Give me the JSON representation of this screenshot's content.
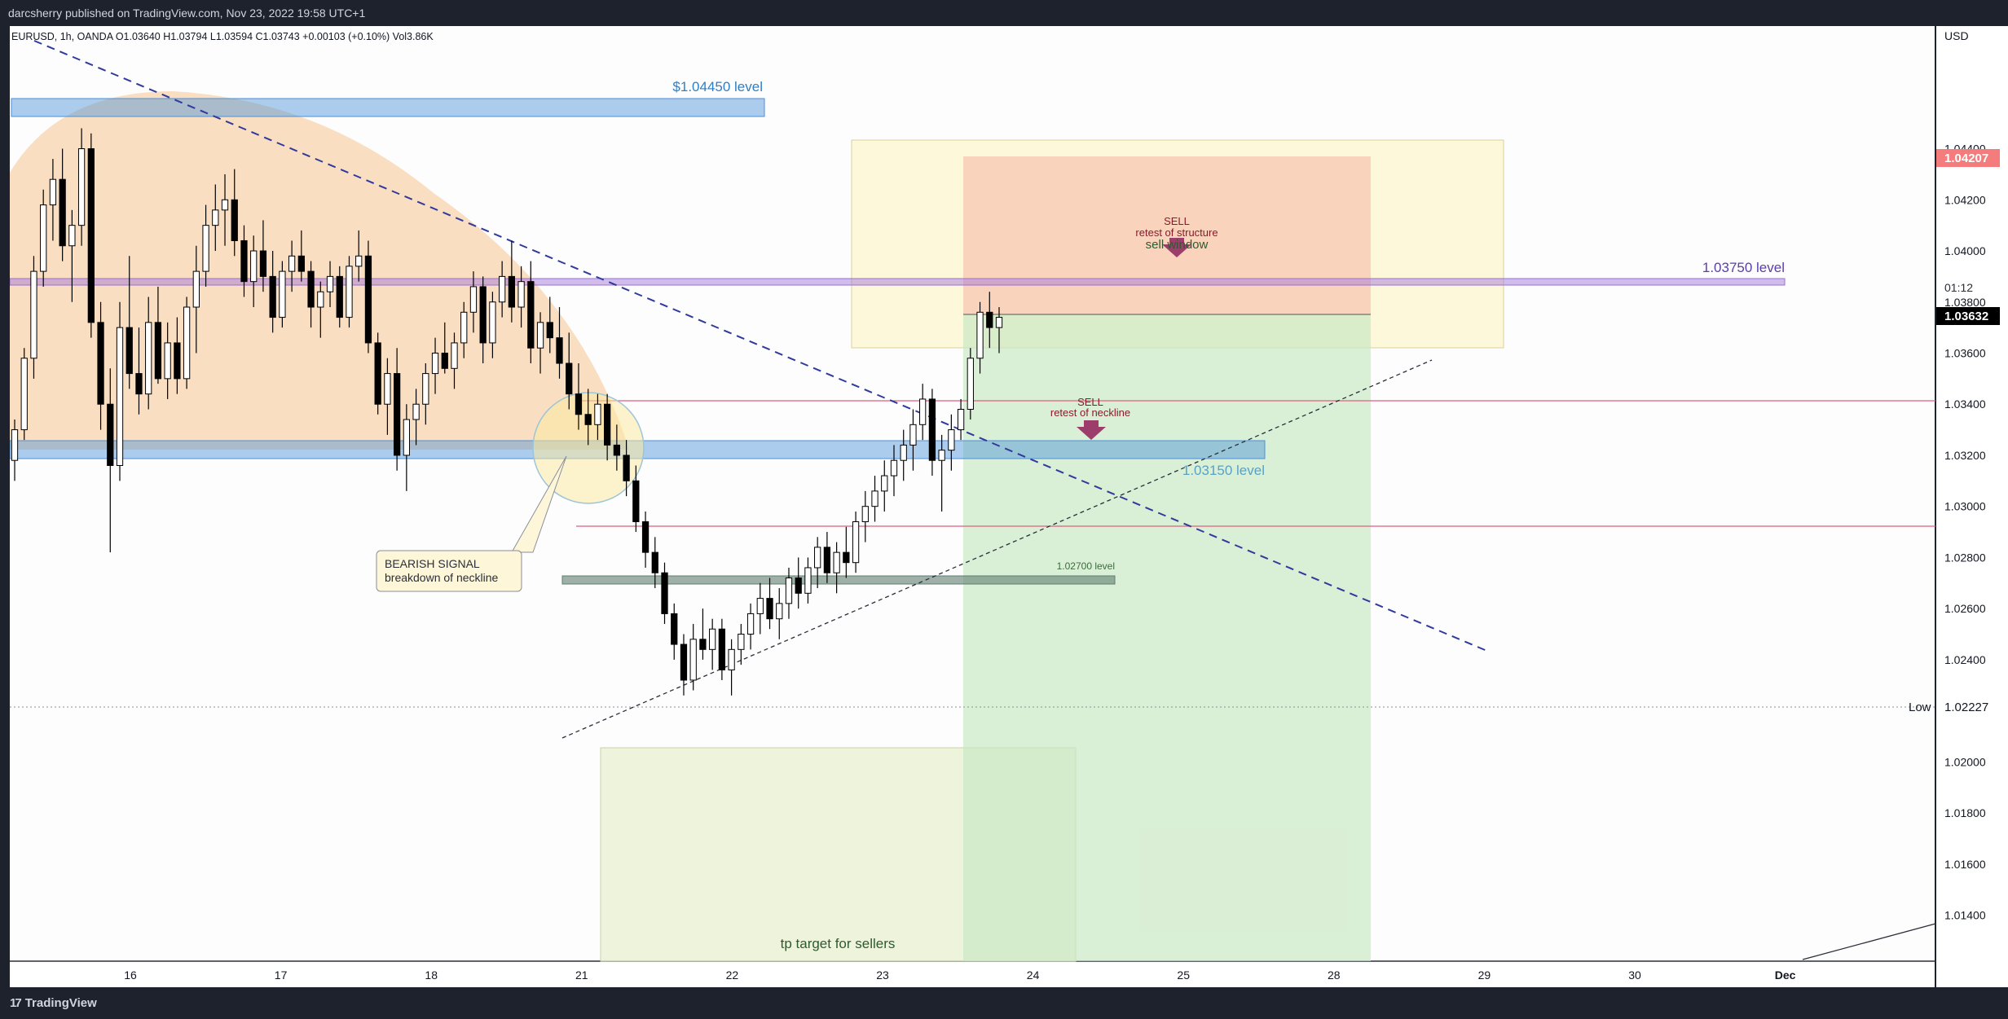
{
  "header": {
    "published": "darcsherry published on TradingView.com, Nov 23, 2022 19:58 UTC+1"
  },
  "footer": {
    "brand": "TradingView",
    "brand_mark": "17"
  },
  "chart_data": {
    "type": "candlestick",
    "symbol_line": "EURUSD, 1h, OANDA  O1.03640  H1.03794  L1.03594  C1.03743  +0.00103 (+0.10%)  Vol3.86K",
    "currency": "USD",
    "ylim": [
      1.0122,
      1.0488
    ],
    "y_ticks": [
      "1.04400",
      "1.04200",
      "1.04000",
      "1.03800",
      "1.03600",
      "1.03400",
      "1.03200",
      "1.03000",
      "1.02800",
      "1.02600",
      "1.02400",
      "1.02200",
      "1.02000",
      "1.01800",
      "1.01600",
      "1.01400"
    ],
    "x_ticks": [
      "16",
      "17",
      "18",
      "21",
      "22",
      "23",
      "24",
      "25",
      "28",
      "29",
      "30",
      "Dec"
    ],
    "price_labels": {
      "current": "1.03632",
      "countdown": "01:12",
      "alert": "1.04207",
      "low_label": "Low",
      "low_value": "1.02227"
    },
    "levels": {
      "l104450": "$1.04450 level",
      "l103750": "1.03750 level",
      "l103150": "1.03150 level",
      "l102700": "1.02700 level"
    },
    "annotations": {
      "sell1": "SELL",
      "sell1b": "retest of structure",
      "sell_window": "sell window",
      "sell2": "SELL",
      "sell2b": "retest of neckline",
      "bearish1": "BEARISH SIGNAL",
      "bearish2": "breakdown of neckline",
      "tp": "tp target for sellers"
    },
    "colors": {
      "up": "#ffffff",
      "down": "#000000",
      "level_blue": "#4a90d9",
      "level_purple": "#9c6fd6",
      "dome": "#f3b77a",
      "tp_box": "#e8f0d0",
      "sell_window": "#fdf6cf",
      "sell_red": "#f8c3b0",
      "sell_green": "#c9e8c4"
    },
    "candles": [
      [
        1.0318,
        1.0334,
        1.031,
        1.033
      ],
      [
        1.033,
        1.0362,
        1.0326,
        1.0358
      ],
      [
        1.0358,
        1.0398,
        1.035,
        1.0392
      ],
      [
        1.0392,
        1.0424,
        1.0386,
        1.0418
      ],
      [
        1.0418,
        1.0436,
        1.0404,
        1.0428
      ],
      [
        1.0428,
        1.044,
        1.0396,
        1.0402
      ],
      [
        1.0402,
        1.0416,
        1.038,
        1.041
      ],
      [
        1.041,
        1.0448,
        1.0402,
        1.044
      ],
      [
        1.044,
        1.0446,
        1.0366,
        1.0372
      ],
      [
        1.0372,
        1.038,
        1.033,
        1.034
      ],
      [
        1.034,
        1.0354,
        1.0282,
        1.0316
      ],
      [
        1.0316,
        1.038,
        1.031,
        1.037
      ],
      [
        1.037,
        1.0398,
        1.0346,
        1.0352
      ],
      [
        1.0352,
        1.037,
        1.0336,
        1.0344
      ],
      [
        1.0344,
        1.0382,
        1.0338,
        1.0372
      ],
      [
        1.0372,
        1.0386,
        1.0348,
        1.035
      ],
      [
        1.035,
        1.0372,
        1.0342,
        1.0364
      ],
      [
        1.0364,
        1.0374,
        1.0344,
        1.035
      ],
      [
        1.035,
        1.0382,
        1.0346,
        1.0378
      ],
      [
        1.0378,
        1.0402,
        1.036,
        1.0392
      ],
      [
        1.0392,
        1.0418,
        1.0386,
        1.041
      ],
      [
        1.041,
        1.0426,
        1.04,
        1.0416
      ],
      [
        1.0416,
        1.043,
        1.0402,
        1.042
      ],
      [
        1.042,
        1.0432,
        1.0398,
        1.0404
      ],
      [
        1.0404,
        1.041,
        1.0382,
        1.0388
      ],
      [
        1.0388,
        1.0406,
        1.0378,
        1.04
      ],
      [
        1.04,
        1.0412,
        1.0384,
        1.039
      ],
      [
        1.039,
        1.04,
        1.0368,
        1.0374
      ],
      [
        1.0374,
        1.0396,
        1.037,
        1.0392
      ],
      [
        1.0392,
        1.0404,
        1.0384,
        1.0398
      ],
      [
        1.0398,
        1.0408,
        1.0388,
        1.0392
      ],
      [
        1.0392,
        1.0396,
        1.037,
        1.0378
      ],
      [
        1.0378,
        1.0388,
        1.0366,
        1.0384
      ],
      [
        1.0384,
        1.0396,
        1.0378,
        1.039
      ],
      [
        1.039,
        1.0394,
        1.037,
        1.0374
      ],
      [
        1.0374,
        1.0398,
        1.037,
        1.0394
      ],
      [
        1.0394,
        1.0408,
        1.0388,
        1.0398
      ],
      [
        1.0398,
        1.0404,
        1.036,
        1.0364
      ],
      [
        1.0364,
        1.0368,
        1.0336,
        1.034
      ],
      [
        1.034,
        1.0358,
        1.0328,
        1.0352
      ],
      [
        1.0352,
        1.0362,
        1.0314,
        1.032
      ],
      [
        1.032,
        1.034,
        1.0306,
        1.0334
      ],
      [
        1.0334,
        1.0346,
        1.0324,
        1.034
      ],
      [
        1.034,
        1.0356,
        1.0332,
        1.0352
      ],
      [
        1.0352,
        1.0366,
        1.0344,
        1.036
      ],
      [
        1.036,
        1.0372,
        1.0352,
        1.0354
      ],
      [
        1.0354,
        1.0368,
        1.0346,
        1.0364
      ],
      [
        1.0364,
        1.038,
        1.0358,
        1.0376
      ],
      [
        1.0376,
        1.0392,
        1.0368,
        1.0386
      ],
      [
        1.0386,
        1.039,
        1.0356,
        1.0364
      ],
      [
        1.0364,
        1.0384,
        1.0358,
        1.038
      ],
      [
        1.038,
        1.0396,
        1.0374,
        1.039
      ],
      [
        1.039,
        1.0404,
        1.0372,
        1.0378
      ],
      [
        1.0378,
        1.0394,
        1.037,
        1.0388
      ],
      [
        1.0388,
        1.0396,
        1.0356,
        1.0362
      ],
      [
        1.0362,
        1.0376,
        1.0352,
        1.0372
      ],
      [
        1.0372,
        1.0382,
        1.036,
        1.0366
      ],
      [
        1.0366,
        1.0378,
        1.035,
        1.0356
      ],
      [
        1.0356,
        1.0368,
        1.0338,
        1.0344
      ],
      [
        1.0344,
        1.0356,
        1.033,
        1.0336
      ],
      [
        1.0336,
        1.0346,
        1.0324,
        1.0332
      ],
      [
        1.0332,
        1.0344,
        1.0326,
        1.034
      ],
      [
        1.034,
        1.0344,
        1.0318,
        1.0324
      ],
      [
        1.0324,
        1.0332,
        1.0314,
        1.032
      ],
      [
        1.032,
        1.0326,
        1.0304,
        1.031
      ],
      [
        1.031,
        1.0316,
        1.029,
        1.0294
      ],
      [
        1.0294,
        1.0298,
        1.0276,
        1.0282
      ],
      [
        1.0282,
        1.0288,
        1.0268,
        1.0274
      ],
      [
        1.0274,
        1.0278,
        1.0254,
        1.0258
      ],
      [
        1.0258,
        1.0262,
        1.024,
        1.0246
      ],
      [
        1.0246,
        1.025,
        1.0226,
        1.0232
      ],
      [
        1.0232,
        1.0254,
        1.0228,
        1.0248
      ],
      [
        1.0248,
        1.026,
        1.024,
        1.0244
      ],
      [
        1.0244,
        1.0256,
        1.0236,
        1.0252
      ],
      [
        1.0252,
        1.0256,
        1.0232,
        1.0236
      ],
      [
        1.0236,
        1.0248,
        1.0226,
        1.0244
      ],
      [
        1.0244,
        1.0254,
        1.0238,
        1.025
      ],
      [
        1.025,
        1.0262,
        1.0244,
        1.0258
      ],
      [
        1.0258,
        1.027,
        1.025,
        1.0264
      ],
      [
        1.0264,
        1.0272,
        1.0252,
        1.0256
      ],
      [
        1.0256,
        1.0268,
        1.0248,
        1.0262
      ],
      [
        1.0262,
        1.0276,
        1.0256,
        1.0272
      ],
      [
        1.0272,
        1.028,
        1.026,
        1.0266
      ],
      [
        1.0266,
        1.028,
        1.0262,
        1.0276
      ],
      [
        1.0276,
        1.0288,
        1.0268,
        1.0284
      ],
      [
        1.0284,
        1.029,
        1.027,
        1.0274
      ],
      [
        1.0274,
        1.0286,
        1.0266,
        1.0282
      ],
      [
        1.0282,
        1.0292,
        1.0272,
        1.0278
      ],
      [
        1.0278,
        1.0298,
        1.0274,
        1.0294
      ],
      [
        1.0294,
        1.0306,
        1.0286,
        1.03
      ],
      [
        1.03,
        1.0312,
        1.0294,
        1.0306
      ],
      [
        1.0306,
        1.0318,
        1.0298,
        1.0312
      ],
      [
        1.0312,
        1.0324,
        1.0304,
        1.0318
      ],
      [
        1.0318,
        1.033,
        1.031,
        1.0324
      ],
      [
        1.0324,
        1.0338,
        1.0314,
        1.0332
      ],
      [
        1.0332,
        1.0348,
        1.0326,
        1.0342
      ],
      [
        1.0342,
        1.0346,
        1.0312,
        1.0318
      ],
      [
        1.0318,
        1.0328,
        1.0298,
        1.0322
      ],
      [
        1.0322,
        1.0336,
        1.0314,
        1.033
      ],
      [
        1.033,
        1.0342,
        1.0326,
        1.0338
      ],
      [
        1.0338,
        1.0362,
        1.0334,
        1.0358
      ],
      [
        1.0358,
        1.038,
        1.0352,
        1.0376
      ],
      [
        1.0376,
        1.0384,
        1.0362,
        1.037
      ],
      [
        1.037,
        1.0378,
        1.036,
        1.0374
      ]
    ]
  }
}
